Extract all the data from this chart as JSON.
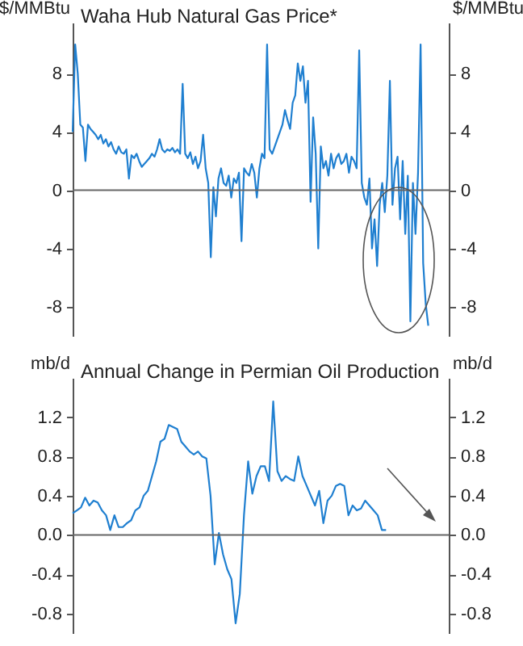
{
  "chart_data": [
    {
      "type": "line",
      "title": "Waha Hub Natural Gas Price*",
      "ylabel": "$/MMBtu",
      "y2label": "$/MMBtu",
      "categories": [
        null,
        null,
        null,
        null,
        null,
        null,
        null,
        null,
        null,
        null,
        null,
        null,
        null,
        null,
        null,
        null,
        null,
        null,
        null,
        null,
        null,
        null,
        null,
        null,
        null,
        null,
        null,
        null,
        null,
        null,
        null,
        null,
        null,
        null,
        null,
        null,
        null,
        null,
        null,
        null,
        null,
        null,
        null,
        null,
        null,
        null,
        null,
        null,
        null,
        null,
        null,
        null,
        null,
        null,
        null,
        null,
        null,
        null,
        null,
        null,
        null,
        null,
        null,
        null,
        null,
        null,
        null,
        null,
        null,
        null,
        null,
        null,
        null,
        null,
        null,
        null,
        null,
        null,
        null,
        null,
        null,
        null,
        null,
        null,
        null,
        null,
        null,
        null,
        null,
        null,
        null,
        null,
        null,
        null,
        null,
        null,
        null,
        null,
        null,
        null,
        null,
        null,
        null,
        null,
        null,
        null,
        null,
        null,
        null,
        null,
        null,
        null,
        null,
        null,
        null,
        null,
        null,
        null,
        null,
        null,
        null,
        null,
        null,
        null,
        null,
        null,
        null,
        null,
        null,
        null,
        null,
        null,
        null,
        null,
        null,
        null,
        null,
        null,
        null,
        null,
        null,
        null,
        null,
        null,
        null,
        null,
        null,
        null
      ],
      "series": [
        {
          "color": "#1f7fd0",
          "values": [
            4.0,
            10.0,
            8.0,
            4.5,
            4.3,
            2.0,
            4.5,
            4.2,
            4.0,
            3.8,
            3.5,
            3.8,
            3.2,
            3.5,
            3.0,
            3.3,
            2.8,
            2.5,
            3.0,
            2.6,
            2.5,
            2.8,
            0.8,
            2.4,
            2.2,
            2.5,
            2.0,
            1.6,
            1.8,
            2.0,
            2.2,
            2.5,
            2.3,
            2.8,
            3.5,
            2.8,
            2.6,
            2.8,
            2.7,
            2.9,
            2.6,
            2.8,
            2.5,
            7.3,
            2.5,
            2.2,
            2.6,
            1.8,
            2.3,
            1.5,
            2.0,
            3.8,
            1.5,
            0.5,
            -4.6,
            0.2,
            -1.8,
            0.8,
            1.5,
            0.5,
            0.3,
            1.0,
            -0.5,
            0.8,
            0.5,
            1.2,
            -3.5,
            1.5,
            1.2,
            1.0,
            1.8,
            1.2,
            -0.5,
            1.5,
            2.5,
            2.2,
            10.0,
            2.8,
            2.5,
            3.0,
            3.5,
            4.0,
            4.5,
            5.5,
            4.8,
            4.2,
            6.0,
            6.5,
            8.7,
            7.5,
            8.5,
            6.0,
            7.5,
            -0.8,
            5.0,
            2.5,
            -4.0,
            3.0,
            1.5,
            2.0,
            1.0,
            2.5,
            1.5,
            2.2,
            2.5,
            1.8,
            2.0,
            2.5,
            1.2,
            2.3,
            2.0,
            1.5,
            9.6,
            0.5,
            -0.5,
            -1.0,
            0.8,
            -4.0,
            -2.0,
            -5.2,
            -1.0,
            0.5,
            -1.5,
            1.0,
            7.5,
            -1.0,
            1.5,
            2.3,
            -2.0,
            2.0,
            -3.0,
            1.0,
            -9.0,
            0.5,
            -3.0,
            1.2,
            10.0,
            -5.0,
            -7.8,
            -9.3,
            null,
            null,
            null,
            null,
            null,
            null,
            null,
            null
          ]
        }
      ],
      "ylim": [
        -10,
        11.5
      ],
      "yticks": [
        -8,
        -4,
        0,
        4,
        8
      ],
      "y2lim": [
        -10,
        11.5
      ],
      "y2ticks": [
        -8,
        -4,
        0,
        4,
        8
      ],
      "ref_lines": [
        {
          "axis": "y",
          "value": 0,
          "color": "#666666"
        }
      ]
    },
    {
      "type": "line",
      "title": "Annual Change in Permian Oil Production",
      "ylabel": "mb/d",
      "y2label": "mb/d",
      "categories": [
        null,
        null,
        null,
        null,
        null,
        null,
        null,
        null,
        null,
        null,
        null,
        null,
        null,
        null,
        null,
        null,
        null,
        null,
        null,
        null,
        null,
        null,
        null,
        null,
        null,
        null,
        null,
        null,
        null,
        null,
        null,
        null,
        null,
        null,
        null,
        null,
        null,
        null,
        null,
        null,
        null,
        null,
        null,
        null,
        null,
        null,
        null,
        null,
        null,
        null,
        null,
        null,
        null,
        null,
        null,
        null,
        null,
        null,
        null,
        null,
        null,
        null,
        null,
        null,
        null,
        null,
        null,
        null,
        null,
        null,
        null,
        null,
        null,
        null,
        null,
        null,
        null,
        null,
        null,
        null,
        null,
        null,
        null,
        null,
        null,
        null,
        null,
        null,
        null,
        null,
        null
      ],
      "series": [
        {
          "color": "#1f7fd0",
          "values": [
            0.22,
            0.25,
            0.28,
            0.38,
            0.3,
            0.35,
            0.33,
            0.25,
            0.2,
            0.05,
            0.2,
            0.08,
            0.08,
            0.12,
            0.15,
            0.25,
            0.28,
            0.4,
            0.45,
            0.6,
            0.75,
            0.95,
            0.98,
            1.12,
            1.1,
            1.08,
            0.95,
            0.9,
            0.85,
            0.82,
            0.85,
            0.8,
            0.78,
            0.4,
            -0.3,
            0.02,
            -0.2,
            -0.35,
            -0.45,
            -0.9,
            -0.6,
            0.2,
            0.75,
            0.42,
            0.6,
            0.7,
            0.7,
            0.55,
            1.36,
            0.65,
            0.55,
            0.6,
            0.57,
            0.55,
            0.8,
            0.6,
            0.5,
            0.4,
            0.3,
            0.45,
            0.12,
            0.35,
            0.4,
            0.5,
            0.52,
            0.5,
            0.2,
            0.3,
            0.25,
            0.27,
            0.35,
            0.3,
            0.25,
            0.2,
            0.05,
            0.05,
            null,
            null,
            null,
            null,
            null,
            null,
            null,
            null,
            null,
            null,
            null,
            null,
            null,
            null,
            null
          ]
        }
      ],
      "ylim": [
        -1.0,
        1.6
      ],
      "yticks": [
        -0.8,
        -0.4,
        {
          "value": 0,
          "label": "0.0"
        },
        0.4,
        0.8,
        1.2
      ],
      "y2lim": [
        -1.0,
        1.6
      ],
      "y2ticks": [
        -0.8,
        -0.4,
        {
          "value": 0,
          "label": "0.0"
        },
        0.4,
        0.8,
        1.2
      ],
      "ref_lines": [
        {
          "axis": "y",
          "value": 0,
          "color": "#666666"
        }
      ]
    }
  ]
}
